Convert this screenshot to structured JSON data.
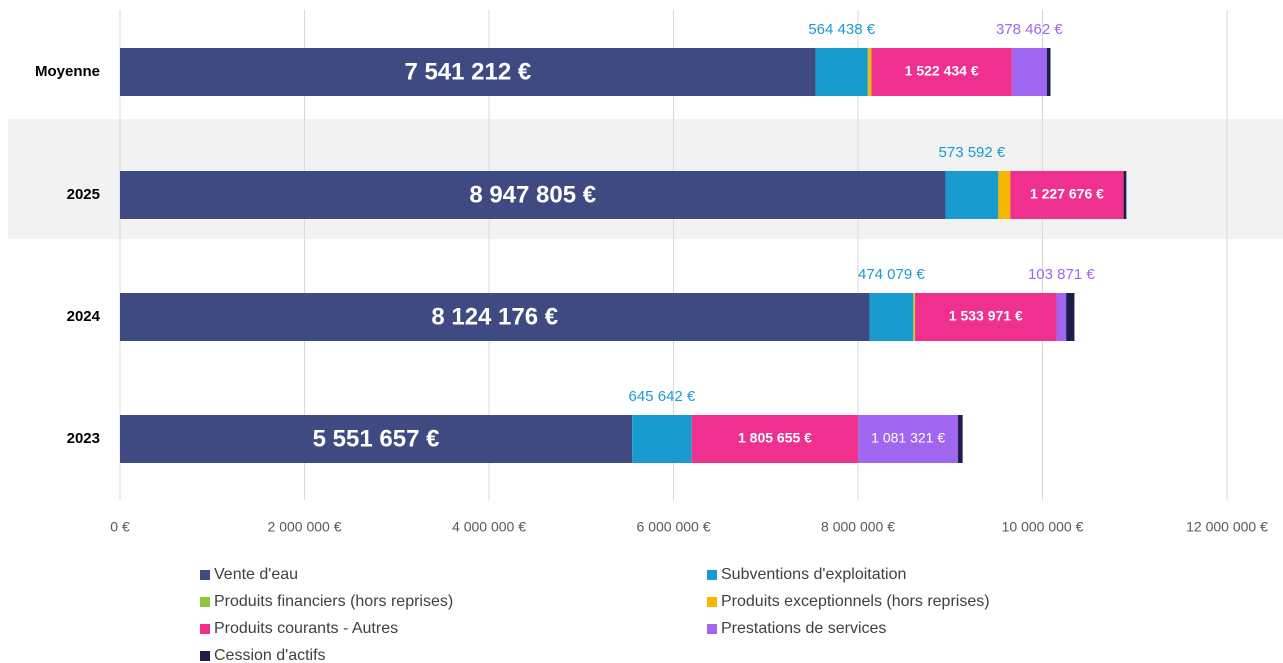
{
  "chart_data": {
    "type": "stacked_barh",
    "categories": [
      "Moyenne",
      "2025",
      "2024",
      "2023"
    ],
    "series": [
      {
        "name": "Vente d'eau",
        "color": "#3f4a82",
        "values": [
          7541212,
          8947805,
          8124176,
          5551657
        ],
        "value_labels": [
          "7 541 212 €",
          "8 947 805 €",
          "8 124 176 €",
          "5 551 657 €"
        ]
      },
      {
        "name": "Subventions d'exploitation",
        "color": "#1a9bd0",
        "values": [
          564438,
          573592,
          474079,
          645642
        ],
        "value_labels": [
          "564 438 €",
          "573 592 €",
          "474 079 €",
          "645 642 €"
        ]
      },
      {
        "name": "Produits financiers (hors reprises)",
        "color": "#8dc63f",
        "values": [
          10000,
          0,
          10000,
          0
        ]
      },
      {
        "name": "Produits exceptionnels (hors reprises)",
        "color": "#f5b800",
        "values": [
          30000,
          130000,
          10000,
          0
        ]
      },
      {
        "name": "Produits courants - Autres",
        "color": "#f0308f",
        "values": [
          1522434,
          1227676,
          1533971,
          1805655
        ],
        "value_labels": [
          "1 522 434 €",
          "1 227 676 €",
          "1 533 971 €",
          "1 805 655 €"
        ]
      },
      {
        "name": "Prestations de services",
        "color": "#a066f0",
        "values": [
          378462,
          0,
          103871,
          1081321
        ],
        "value_labels": [
          "378 462 €",
          null,
          "103 871 €",
          "1 081 321 €"
        ]
      },
      {
        "name": "Cession d'actifs",
        "color": "#1b1f4a",
        "values": [
          40000,
          30000,
          90000,
          50000
        ]
      }
    ],
    "xlim": [
      0,
      12000000
    ],
    "xticks": [
      {
        "value": 0,
        "label": "0 €"
      },
      {
        "value": 2000000,
        "label": "2 000 000 €"
      },
      {
        "value": 4000000,
        "label": "4 000 000 €"
      },
      {
        "value": 6000000,
        "label": "6 000 000 €"
      },
      {
        "value": 8000000,
        "label": "8 000 000 €"
      },
      {
        "value": 10000000,
        "label": "10 000 000 €"
      },
      {
        "value": 12000000,
        "label": "12 000 000 €"
      }
    ],
    "grid": true
  }
}
